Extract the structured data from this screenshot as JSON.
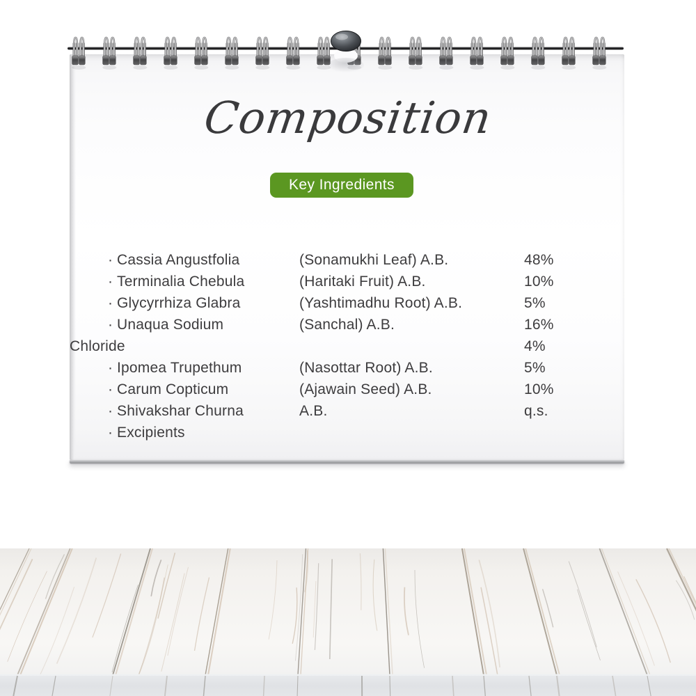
{
  "calendar": {
    "title": "Composition",
    "badge": {
      "label": "Key Ingredients",
      "bg_color": "#5b9721",
      "text_color": "#ffffff"
    },
    "list": {
      "bullet": "·",
      "rows": [
        {
          "name": "Cassia Angustfolia",
          "desc": "(Sonamukhi Leaf) A.B.",
          "pct": "48%"
        },
        {
          "name": "Terminalia Chebula",
          "desc": "(Haritaki Fruit) A.B.",
          "pct": "10%"
        },
        {
          "name": "Glycyrrhiza Glabra",
          "desc": "(Yashtimadhu Root) A.B.",
          "pct": "5%"
        },
        {
          "name": "Unaqua Sodium",
          "name2": "Chloride",
          "desc": "(Sanchal) A.B.",
          "pct": "16%",
          "pct2": "4%"
        },
        {
          "name": "Ipomea Trupethum",
          "desc": "(Nasottar Root) A.B.",
          "pct": "5%"
        },
        {
          "name": "Carum Copticum",
          "desc": "(Ajawain Seed) A.B.",
          "pct": "10%"
        },
        {
          "name": "Shivakshar Churna",
          "desc": "A.B.",
          "pct": "q.s."
        },
        {
          "name": "Excipients",
          "desc": "",
          "pct": ""
        }
      ]
    },
    "binding": {
      "ring_count": 18
    }
  },
  "colors": {
    "badge_green": "#5b9721",
    "text_dark": "#3d3c3e",
    "paper": "#fcfcfd",
    "rod": "#2a2a2c"
  }
}
